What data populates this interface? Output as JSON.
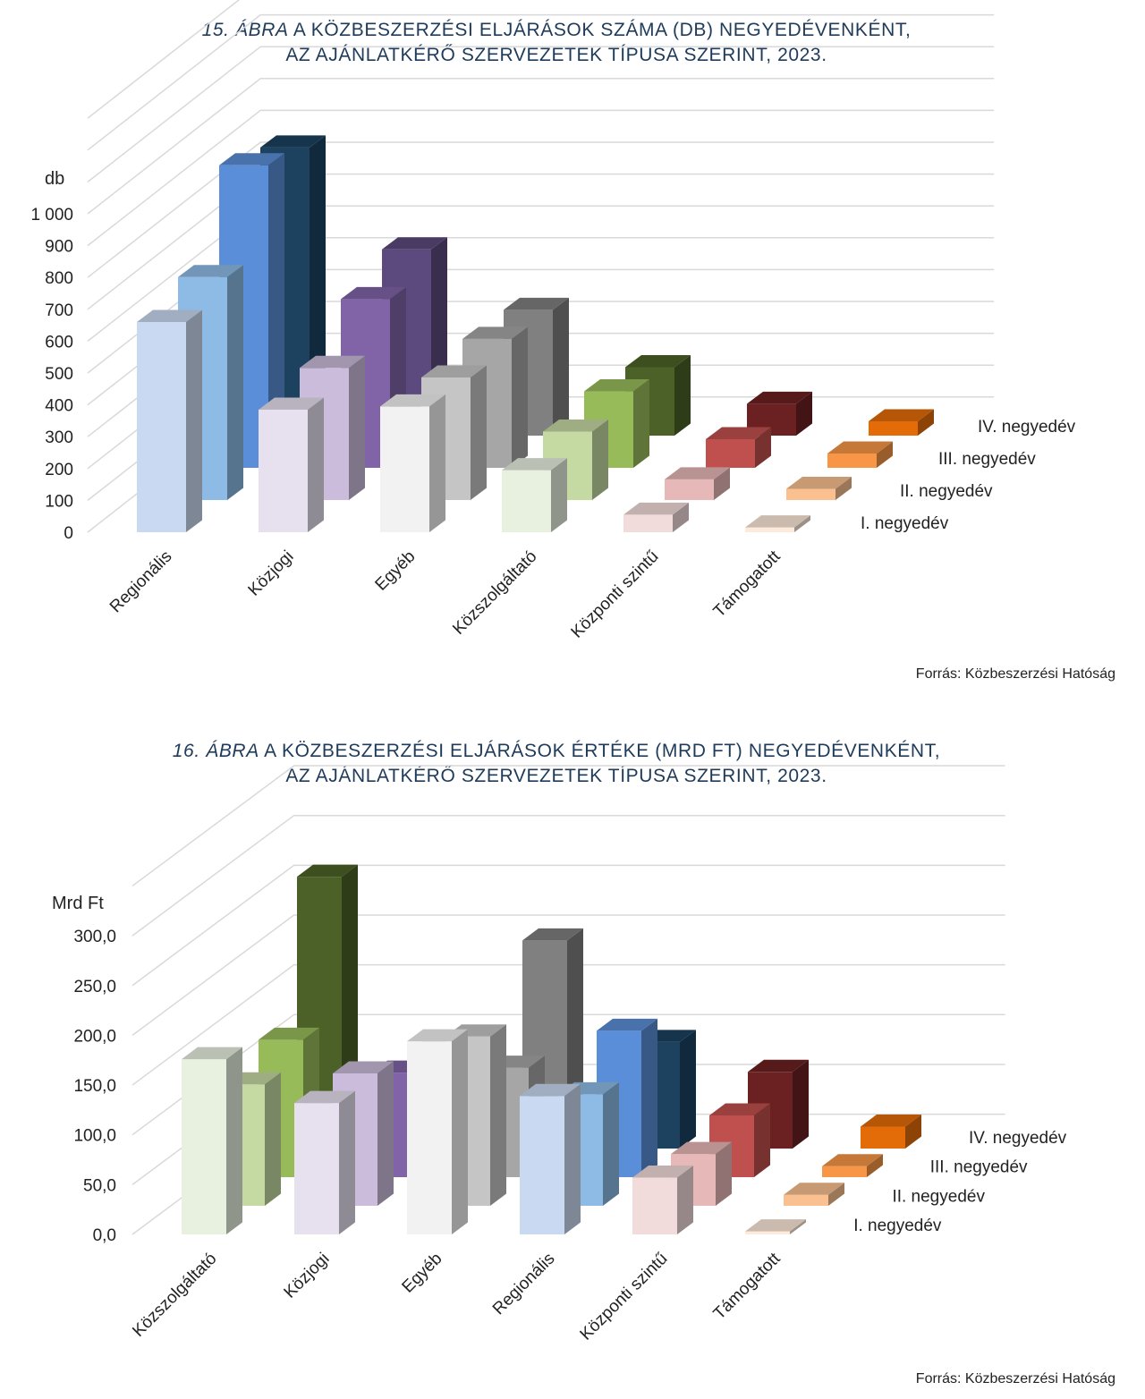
{
  "series_names": [
    "I. negyedév",
    "II. negyedév",
    "III. negyedév",
    "IV. negyedév"
  ],
  "source": "Forrás: Közbeszerzési Hatóság",
  "chart_data": [
    {
      "type": "bar",
      "title_number": "15. ÁBRA",
      "title_line1": "A KÖZBESZERZÉSI ELJÁRÁSOK SZÁMA (DB) NEGYEDÉVENKÉNT,",
      "title_line2": "AZ AJÁNLATKÉRŐ SZERVEZETEK TÍPUSA SZERINT, 2023.",
      "unit_label": "db",
      "ylim": [
        0,
        1000
      ],
      "yticks": [
        "0",
        "100",
        "200",
        "300",
        "400",
        "500",
        "600",
        "700",
        "800",
        "900",
        "1 000"
      ],
      "categories": [
        "Regionális",
        "Közjogi",
        "Egyéb",
        "Közszolgáltató",
        "Központi szintű",
        "Támogatott"
      ],
      "series": [
        {
          "name": "I. negyedév",
          "values": [
            660,
            385,
            395,
            195,
            55,
            15
          ]
        },
        {
          "name": "II. negyedév",
          "values": [
            700,
            415,
            385,
            215,
            65,
            35
          ]
        },
        {
          "name": "III. negyedév",
          "values": [
            950,
            530,
            405,
            240,
            90,
            45
          ]
        },
        {
          "name": "IV. negyedév",
          "values": [
            905,
            585,
            395,
            215,
            100,
            45
          ]
        }
      ],
      "colors": [
        [
          "#c9d9f1",
          "#8dbbe6",
          "#5b8ed8",
          "#1c4260"
        ],
        [
          "#e6e0ef",
          "#cbbcdb",
          "#8064a7",
          "#5c4a7e"
        ],
        [
          "#f2f2f2",
          "#c5c5c5",
          "#a6a6a6",
          "#808080"
        ],
        [
          "#e8f0e0",
          "#c5d9a3",
          "#98bb5a",
          "#4c6127"
        ],
        [
          "#f2dcdb",
          "#e6b8b7",
          "#c0504d",
          "#6b2022"
        ],
        [
          "#fdeada",
          "#fac090",
          "#f79646",
          "#e36c09"
        ]
      ]
    },
    {
      "type": "bar",
      "title_number": "16. ÁBRA",
      "title_line1": "A KÖZBESZERZÉSI ELJÁRÁSOK ÉRTÉKE (MRD FT) NEGYEDÉVENKÉNT,",
      "title_line2": "AZ AJÁNLATKÉRŐ SZERVEZETEK TÍPUSA SZERINT, 2023.",
      "unit_label": "Mrd Ft",
      "ylim": [
        0,
        300
      ],
      "yticks": [
        "0,0",
        "50,0",
        "100,0",
        "150,0",
        "200,0",
        "250,0",
        "300,0"
      ],
      "categories": [
        "Közszolgáltató",
        "Közjogi",
        "Egyéb",
        "Regionális",
        "Központi szintű",
        "Támogatott"
      ],
      "series": [
        {
          "name": "I. negyedév",
          "values": [
            176,
            132,
            194,
            139,
            57,
            3
          ]
        },
        {
          "name": "II. negyedév",
          "values": [
            122,
            133,
            170,
            112,
            52,
            11
          ]
        },
        {
          "name": "III. negyedév",
          "values": [
            138,
            105,
            110,
            147,
            62,
            11
          ]
        },
        {
          "name": "IV. negyedév",
          "values": [
            273,
            98,
            209,
            107,
            77,
            22
          ]
        }
      ],
      "colors": [
        [
          "#e8f0e0",
          "#c5d9a3",
          "#98bb5a",
          "#4c6127"
        ],
        [
          "#e6e0ef",
          "#cbbcdb",
          "#8064a7",
          "#5c4a7e"
        ],
        [
          "#f2f2f2",
          "#c5c5c5",
          "#a6a6a6",
          "#808080"
        ],
        [
          "#c9d9f1",
          "#8dbbe6",
          "#5b8ed8",
          "#1c4260"
        ],
        [
          "#f2dcdb",
          "#e6b8b7",
          "#c0504d",
          "#6b2022"
        ],
        [
          "#fdeada",
          "#fac090",
          "#f79646",
          "#e36c09"
        ]
      ]
    }
  ]
}
